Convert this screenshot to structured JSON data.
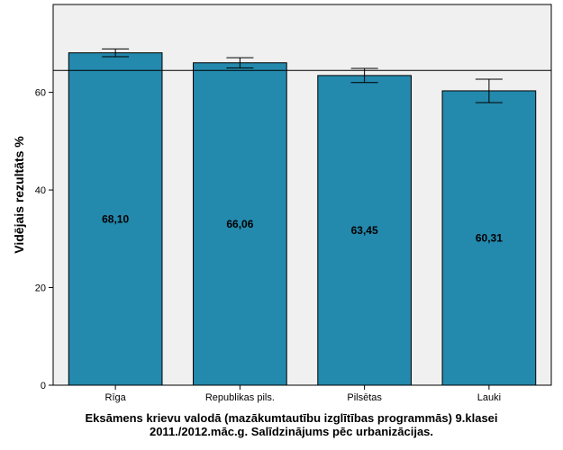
{
  "chart_data": {
    "type": "bar",
    "categories": [
      "Rīga",
      "Republikas pils.",
      "Pilsētas",
      "Lauki"
    ],
    "values": [
      68.1,
      66.06,
      63.45,
      60.31
    ],
    "data_labels": [
      "68,10",
      "66,06",
      "63,45",
      "60,31"
    ],
    "error_bars": [
      {
        "low": 67.3,
        "high": 68.9
      },
      {
        "low": 65.0,
        "high": 67.1
      },
      {
        "low": 62.0,
        "high": 64.9
      },
      {
        "low": 57.9,
        "high": 62.7
      }
    ],
    "reference_line": 64.5,
    "ylabel": "Vidējais rezultāts %",
    "xlabel_lines": [
      "Eksāmens krievu valodā (mazākumtautību izglītības programmās) 9.klasei",
      "2011./2012.māc.g. Salīdzinājums pēc urbanizācijas."
    ],
    "yticks": [
      0,
      20,
      40,
      60
    ],
    "ylim": [
      0,
      78
    ],
    "grid": false,
    "colors": {
      "bar_fill": "#2389AD",
      "plot_background": "#F0F0F0",
      "axis": "#000000"
    }
  }
}
